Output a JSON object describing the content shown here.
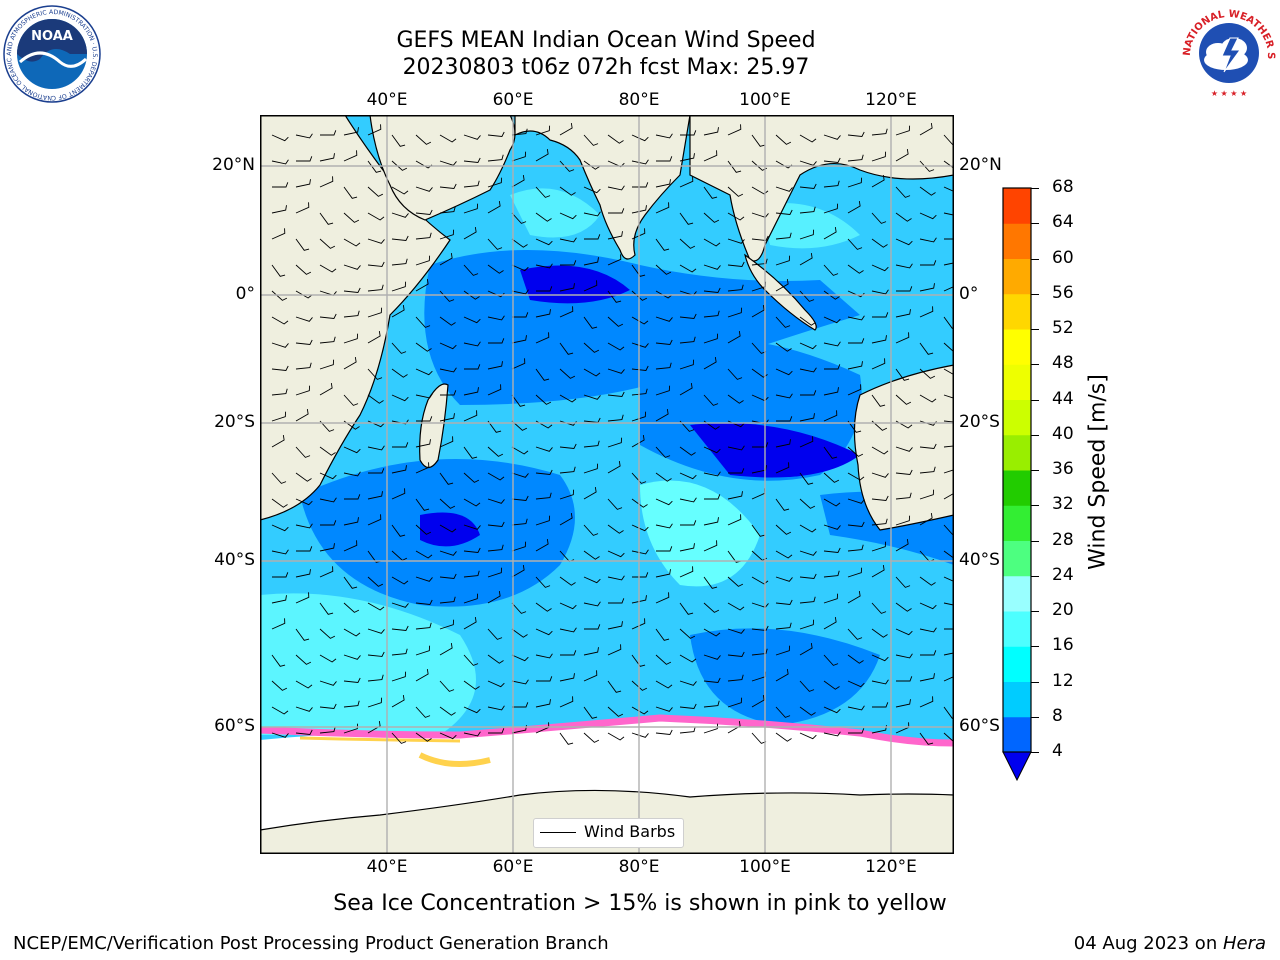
{
  "title": {
    "line1": "GEFS MEAN Indian Ocean Wind Speed",
    "line2": "20230803 t06z 072h fcst   Max: 25.97"
  },
  "map": {
    "lon_ticks": [
      "40°E",
      "60°E",
      "80°E",
      "100°E",
      "120°E"
    ],
    "lat_ticks_left": [
      "20°N",
      "0°",
      "20°S",
      "40°S",
      "60°S"
    ],
    "lat_ticks_right": [
      "20°N",
      "0°",
      "20°S",
      "40°S",
      "60°S"
    ],
    "legend_label": "Wind Barbs",
    "colors": {
      "land": "#efefdf",
      "sea_ice_area": "#ffffff",
      "grid": "#b0b0b0",
      "ice_pink": "#ff66cc",
      "ice_yellow": "#ffd24d"
    }
  },
  "colorbar": {
    "label": "Wind Speed [m/s]",
    "ticks": [
      "4",
      "8",
      "12",
      "16",
      "20",
      "24",
      "28",
      "32",
      "36",
      "40",
      "44",
      "48",
      "52",
      "56",
      "60",
      "64",
      "68"
    ],
    "colors": [
      "#0066ff",
      "#00ccff",
      "#00ffff",
      "#4dffff",
      "#99ffff",
      "#4dff80",
      "#33ee33",
      "#22cc00",
      "#99ee00",
      "#ccff00",
      "#eeff00",
      "#ffff00",
      "#ffd700",
      "#ffaa00",
      "#ff7700",
      "#ff4400",
      "#ff0000"
    ],
    "under_color": "#0000ee"
  },
  "caption": "Sea Ice Concentration > 15% is shown in pink to yellow",
  "footer": {
    "left": "NCEP/EMC/Verification Post Processing Product Generation Branch",
    "date": "04 Aug 2023 on ",
    "machine": "Hera"
  },
  "logos": {
    "noaa_text": "NOAA",
    "noaa_ring": "NATIONAL OCEANIC AND ATMOSPHERIC ADMINISTRATION · U.S. DEPARTMENT OF COMMERCE",
    "nws_ring": "NATIONAL WEATHER SERVICE"
  }
}
